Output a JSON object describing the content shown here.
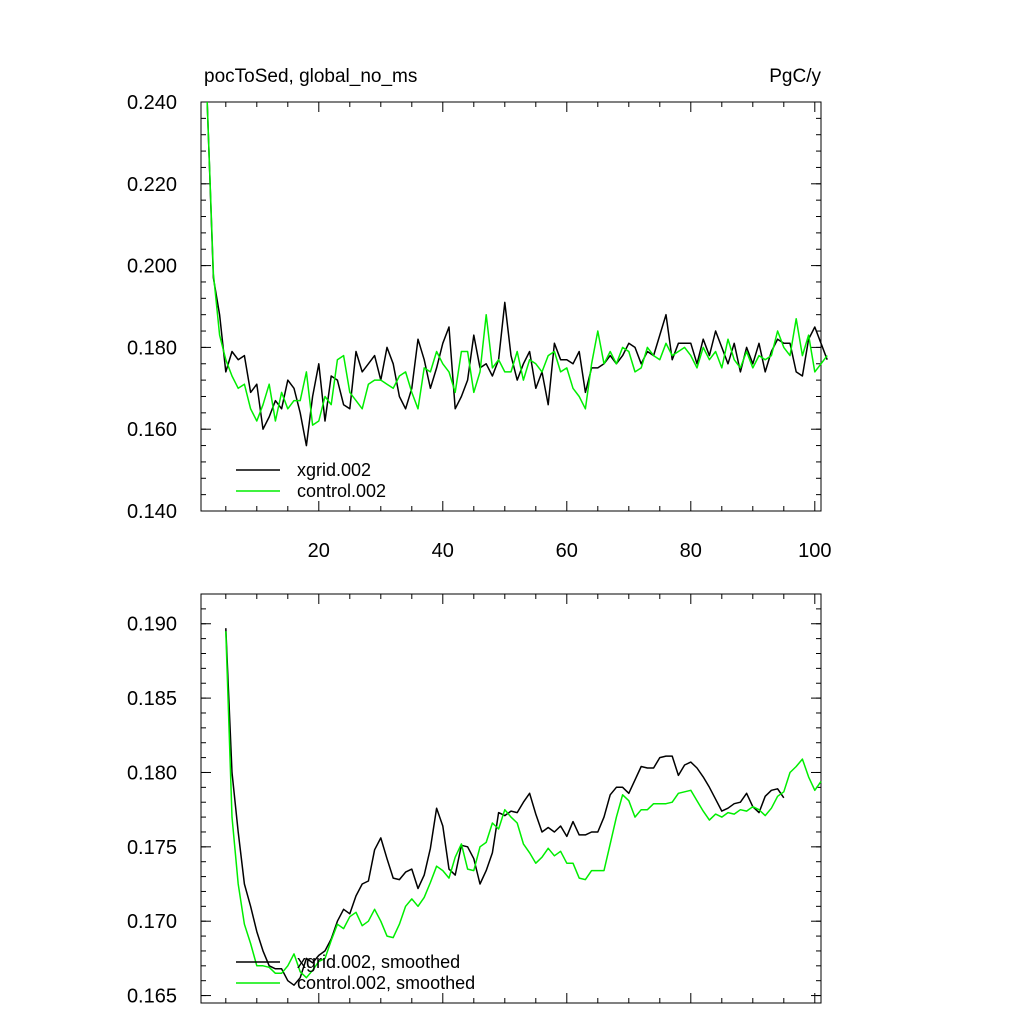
{
  "figure": {
    "title_left": "pocToSed, global_no_ms",
    "title_right": "PgC/y"
  },
  "colors": {
    "xgrid": "#000000",
    "control": "#00ee00"
  },
  "chart_data": [
    {
      "type": "line",
      "title": "pocToSed, global_no_ms",
      "units": "PgC/y",
      "xlim": [
        1,
        101
      ],
      "ylim": [
        0.14,
        0.24
      ],
      "x_ticks": [
        20,
        40,
        60,
        80,
        100
      ],
      "x_tick_labels": [
        "20",
        "40",
        "60",
        "80",
        "100"
      ],
      "y_ticks": [
        0.14,
        0.16,
        0.18,
        0.2,
        0.22,
        0.24
      ],
      "y_tick_labels": [
        "0.140",
        "0.160",
        "0.180",
        "0.200",
        "0.220",
        "0.240"
      ],
      "legend_position": "bottom-left",
      "x_start": 2,
      "series": [
        {
          "name": "xgrid.002",
          "color": "#000000",
          "values": [
            0.243,
            0.197,
            0.188,
            0.174,
            0.179,
            0.177,
            0.178,
            0.169,
            0.171,
            0.16,
            0.163,
            0.167,
            0.165,
            0.172,
            0.17,
            0.164,
            0.156,
            0.168,
            0.176,
            0.162,
            0.173,
            0.172,
            0.166,
            0.165,
            0.179,
            0.174,
            0.176,
            0.178,
            0.172,
            0.18,
            0.176,
            0.168,
            0.165,
            0.17,
            0.182,
            0.177,
            0.17,
            0.175,
            0.181,
            0.185,
            0.165,
            0.168,
            0.172,
            0.183,
            0.175,
            0.176,
            0.173,
            0.177,
            0.191,
            0.178,
            0.172,
            0.176,
            0.179,
            0.17,
            0.174,
            0.166,
            0.181,
            0.177,
            0.177,
            0.176,
            0.179,
            0.169,
            0.175,
            0.175,
            0.176,
            0.178,
            0.176,
            0.178,
            0.181,
            0.18,
            0.176,
            0.179,
            0.178,
            0.183,
            0.188,
            0.177,
            0.181,
            0.181,
            0.181,
            0.176,
            0.182,
            0.178,
            0.184,
            0.18,
            0.176,
            0.181,
            0.174,
            0.18,
            0.176,
            0.181,
            0.174,
            0.179,
            0.182,
            0.181,
            0.181,
            0.174,
            0.173,
            0.182,
            0.185,
            0.181,
            0.177
          ]
        },
        {
          "name": "control.002",
          "color": "#00ee00",
          "values": [
            0.241,
            0.198,
            0.183,
            0.177,
            0.173,
            0.17,
            0.171,
            0.165,
            0.162,
            0.166,
            0.171,
            0.162,
            0.169,
            0.165,
            0.167,
            0.167,
            0.174,
            0.161,
            0.162,
            0.168,
            0.166,
            0.177,
            0.178,
            0.169,
            0.167,
            0.165,
            0.171,
            0.172,
            0.172,
            0.171,
            0.17,
            0.173,
            0.174,
            0.169,
            0.165,
            0.175,
            0.174,
            0.179,
            0.176,
            0.174,
            0.169,
            0.179,
            0.179,
            0.169,
            0.174,
            0.188,
            0.175,
            0.177,
            0.174,
            0.174,
            0.179,
            0.172,
            0.177,
            0.176,
            0.174,
            0.178,
            0.179,
            0.174,
            0.175,
            0.17,
            0.168,
            0.165,
            0.176,
            0.184,
            0.176,
            0.179,
            0.176,
            0.18,
            0.179,
            0.174,
            0.175,
            0.18,
            0.178,
            0.177,
            0.181,
            0.178,
            0.179,
            0.18,
            0.178,
            0.175,
            0.18,
            0.177,
            0.179,
            0.175,
            0.182,
            0.177,
            0.175,
            0.179,
            0.175,
            0.178,
            0.177,
            0.178,
            0.184,
            0.18,
            0.178,
            0.187,
            0.178,
            0.183,
            0.174,
            0.176,
            0.178
          ]
        }
      ]
    },
    {
      "type": "line",
      "xlim": [
        1,
        101
      ],
      "ylim": [
        0.1645,
        0.192
      ],
      "x_ticks": [
        20,
        40,
        60,
        80,
        100
      ],
      "y_ticks": [
        0.165,
        0.17,
        0.175,
        0.18,
        0.185,
        0.19
      ],
      "y_tick_labels": [
        "0.165",
        "0.170",
        "0.175",
        "0.180",
        "0.185",
        "0.190"
      ],
      "legend_position": "bottom-left",
      "x_start": 5,
      "series": [
        {
          "name": "xgrid.002, smoothed",
          "color": "#000000",
          "values": [
            0.1897,
            0.18,
            0.176,
            0.1725,
            0.171,
            0.1693,
            0.168,
            0.167,
            0.1668,
            0.1668,
            0.166,
            0.1657,
            0.1662,
            0.1675,
            0.1672,
            0.1677,
            0.168,
            0.1688,
            0.17,
            0.1708,
            0.1705,
            0.1717,
            0.1725,
            0.1727,
            0.1748,
            0.1756,
            0.1742,
            0.1729,
            0.1728,
            0.1733,
            0.1735,
            0.1722,
            0.1731,
            0.1749,
            0.1776,
            0.1764,
            0.1735,
            0.1731,
            0.1751,
            0.175,
            0.1742,
            0.1725,
            0.1734,
            0.1746,
            0.1773,
            0.1771,
            0.1774,
            0.1773,
            0.178,
            0.1786,
            0.1772,
            0.176,
            0.1763,
            0.176,
            0.1764,
            0.1757,
            0.1767,
            0.1758,
            0.1758,
            0.176,
            0.176,
            0.177,
            0.1785,
            0.179,
            0.179,
            0.1786,
            0.1795,
            0.1804,
            0.1803,
            0.1803,
            0.181,
            0.1811,
            0.1811,
            0.1798,
            0.1805,
            0.1807,
            0.1803,
            0.1797,
            0.179,
            0.1782,
            0.1774,
            0.1776,
            0.1779,
            0.178,
            0.1786,
            0.1777,
            0.1773,
            0.1784,
            0.1788,
            0.1789,
            0.1783
          ]
        },
        {
          "name": "control.002, smoothed",
          "color": "#00ee00",
          "values": [
            0.1895,
            0.177,
            0.1725,
            0.1698,
            0.1685,
            0.167,
            0.167,
            0.1669,
            0.1665,
            0.1665,
            0.167,
            0.1678,
            0.1666,
            0.1662,
            0.1667,
            0.1673,
            0.1675,
            0.1687,
            0.1698,
            0.1695,
            0.1703,
            0.1706,
            0.1697,
            0.17,
            0.1708,
            0.17,
            0.169,
            0.1689,
            0.1698,
            0.171,
            0.1715,
            0.171,
            0.1716,
            0.1726,
            0.1737,
            0.1734,
            0.1729,
            0.1743,
            0.1752,
            0.1735,
            0.1734,
            0.175,
            0.1753,
            0.1766,
            0.1762,
            0.1775,
            0.177,
            0.1766,
            0.1752,
            0.1746,
            0.1739,
            0.1743,
            0.1749,
            0.1744,
            0.1747,
            0.1739,
            0.1739,
            0.1729,
            0.1728,
            0.1734,
            0.1734,
            0.1734,
            0.1752,
            0.177,
            0.1785,
            0.1781,
            0.177,
            0.1775,
            0.1775,
            0.1779,
            0.1779,
            0.1779,
            0.178,
            0.1786,
            0.1787,
            0.1788,
            0.1781,
            0.1774,
            0.1768,
            0.1772,
            0.177,
            0.1773,
            0.1772,
            0.1775,
            0.1774,
            0.1777,
            0.1775,
            0.1771,
            0.1776,
            0.1784,
            0.1787,
            0.18,
            0.1804,
            0.1809,
            0.1797,
            0.1788,
            0.1794
          ]
        }
      ]
    }
  ]
}
